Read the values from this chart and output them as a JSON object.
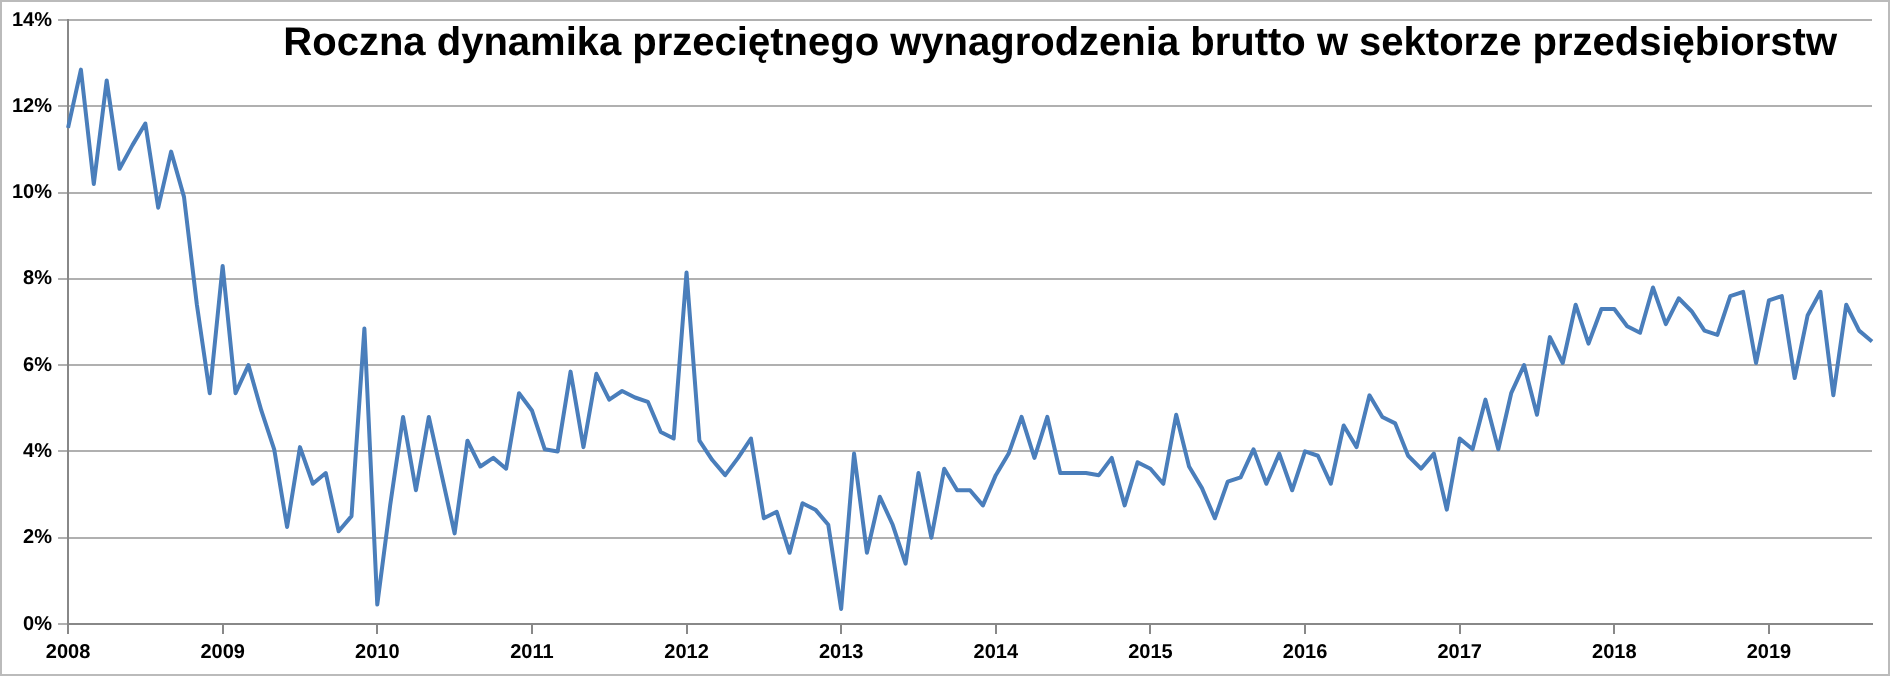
{
  "chart_data": {
    "type": "line",
    "title": "Roczna dynamika przeciętnego wynagrodzenia brutto w sektorze przedsiębiorstw",
    "categories": [
      "2008",
      null,
      null,
      null,
      null,
      null,
      null,
      null,
      null,
      null,
      null,
      null,
      "2009",
      null,
      null,
      null,
      null,
      null,
      null,
      null,
      null,
      null,
      null,
      null,
      "2010",
      null,
      null,
      null,
      null,
      null,
      null,
      null,
      null,
      null,
      null,
      null,
      "2011",
      null,
      null,
      null,
      null,
      null,
      null,
      null,
      null,
      null,
      null,
      null,
      "2012",
      null,
      null,
      null,
      null,
      null,
      null,
      null,
      null,
      null,
      null,
      null,
      "2013",
      null,
      null,
      null,
      null,
      null,
      null,
      null,
      null,
      null,
      null,
      null,
      "2014",
      null,
      null,
      null,
      null,
      null,
      null,
      null,
      null,
      null,
      null,
      null,
      "2015",
      null,
      null,
      null,
      null,
      null,
      null,
      null,
      null,
      null,
      null,
      null,
      "2016",
      null,
      null,
      null,
      null,
      null,
      null,
      null,
      null,
      null,
      null,
      null,
      "2017",
      null,
      null,
      null,
      null,
      null,
      null,
      null,
      null,
      null,
      null,
      null,
      "2018",
      null,
      null,
      null,
      null,
      null,
      null,
      null,
      null,
      null,
      null,
      null,
      "2019",
      null,
      null,
      null,
      null,
      null,
      null,
      null,
      null
    ],
    "series": [
      {
        "color": "#4a7ebb",
        "values": [
          11.5,
          12.85,
          10.2,
          12.6,
          10.55,
          11.1,
          11.6,
          9.65,
          10.95,
          9.9,
          7.4,
          5.35,
          8.3,
          5.35,
          6.0,
          4.95,
          4.05,
          2.25,
          4.1,
          3.25,
          3.5,
          2.15,
          2.5,
          6.85,
          0.45,
          2.75,
          4.8,
          3.1,
          4.8,
          3.45,
          2.1,
          4.25,
          3.65,
          3.85,
          3.6,
          5.35,
          4.95,
          4.05,
          4.0,
          5.85,
          4.1,
          5.8,
          5.2,
          5.4,
          5.25,
          5.15,
          4.45,
          4.3,
          8.15,
          4.25,
          3.8,
          3.45,
          3.85,
          4.3,
          2.45,
          2.6,
          1.65,
          2.8,
          2.65,
          2.3,
          0.35,
          3.95,
          1.65,
          2.95,
          2.3,
          1.4,
          3.5,
          2.0,
          3.6,
          3.1,
          3.1,
          2.75,
          3.45,
          3.95,
          4.8,
          3.85,
          4.8,
          3.5,
          3.5,
          3.5,
          3.45,
          3.85,
          2.75,
          3.75,
          3.6,
          3.25,
          4.85,
          3.65,
          3.15,
          2.45,
          3.3,
          3.4,
          4.05,
          3.25,
          3.95,
          3.1,
          4.0,
          3.9,
          3.25,
          4.6,
          4.1,
          5.3,
          4.8,
          4.65,
          3.9,
          3.6,
          3.95,
          2.65,
          4.3,
          4.05,
          5.2,
          4.05,
          5.35,
          6.0,
          4.85,
          6.65,
          6.05,
          7.4,
          6.5,
          7.3,
          7.3,
          6.9,
          6.75,
          7.8,
          6.95,
          7.55,
          7.25,
          6.8,
          6.7,
          7.6,
          7.7,
          6.05,
          7.5,
          7.6,
          5.7,
          7.15,
          7.7,
          5.3,
          7.4,
          6.8,
          6.55
        ]
      }
    ],
    "ylim": [
      0,
      14
    ],
    "yticks": [
      {
        "value": 0,
        "label": "0%"
      },
      {
        "value": 2,
        "label": "2%"
      },
      {
        "value": 4,
        "label": "4%"
      },
      {
        "value": 6,
        "label": "6%"
      },
      {
        "value": 8,
        "label": "8%"
      },
      {
        "value": 10,
        "label": "10%"
      },
      {
        "value": 12,
        "label": "12%"
      },
      {
        "value": 14,
        "label": "14%"
      }
    ],
    "grid": "y",
    "legend": false,
    "marker": "none",
    "line_style": "solid"
  }
}
